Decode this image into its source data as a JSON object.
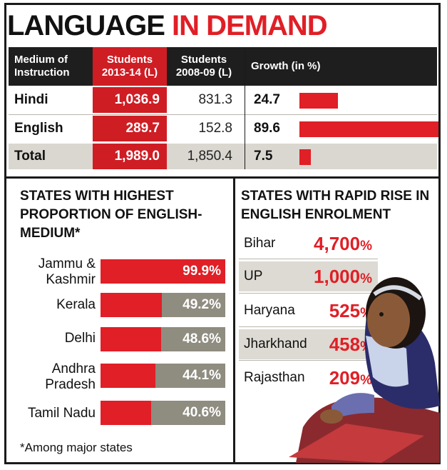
{
  "title": {
    "part1": "LANGUAGE",
    "part2": "IN DEMAND"
  },
  "colors": {
    "accent": "#e01f26",
    "bar_bg": "#8f8c80",
    "header_bg": "#1e1e1e",
    "shade": "#d9d7cf"
  },
  "chart_data": [
    {
      "type": "table",
      "columns": [
        "Medium of Instruction",
        "Students 2013-14 (L)",
        "Students 2008-09 (L)",
        "Growth (in %)"
      ],
      "rows": [
        {
          "label": "Hindi",
          "students_2013_14": "1,036.9",
          "students_2008_09": "831.3",
          "growth": "24.7",
          "growth_value": 24.7
        },
        {
          "label": "English",
          "students_2013_14": "289.7",
          "students_2008_09": "152.8",
          "growth": "89.6",
          "growth_value": 89.6
        },
        {
          "label": "Total",
          "students_2013_14": "1,989.0",
          "students_2008_09": "1,850.4",
          "growth": "7.5",
          "growth_value": 7.5
        }
      ],
      "growth_max": 89.6
    },
    {
      "type": "bar",
      "title": "STATES WITH HIGHEST PROPORTION OF ENGLISH-MEDIUM*",
      "categories": [
        "Jammu & Kashmir",
        "Kerala",
        "Delhi",
        "Andhra Pradesh",
        "Tamil Nadu"
      ],
      "values": [
        99.9,
        49.2,
        48.6,
        44.1,
        40.6
      ],
      "value_labels": [
        "99.9%",
        "49.2%",
        "48.6%",
        "44.1%",
        "40.6%"
      ],
      "ylim": [
        0,
        100
      ],
      "footnote": "*Among major states"
    },
    {
      "type": "table",
      "title": "STATES WITH RAPID RISE IN ENGLISH ENROLMENT",
      "rows": [
        {
          "state": "Bihar",
          "value": "4,700"
        },
        {
          "state": "UP",
          "value": "1,000"
        },
        {
          "state": "Haryana",
          "value": "525"
        },
        {
          "state": "Jharkhand",
          "value": "458"
        },
        {
          "state": "Rajasthan",
          "value": "209"
        }
      ],
      "unit": "%"
    }
  ]
}
